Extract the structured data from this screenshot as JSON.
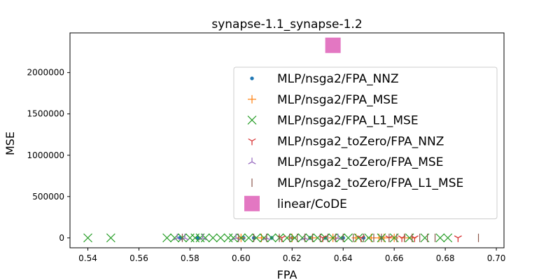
{
  "chart_data": {
    "type": "scatter",
    "title": "synapse-1.1_synapse-1.2",
    "xlabel": "FPA",
    "ylabel": "MSE",
    "xlim": [
      0.533,
      0.703
    ],
    "ylim": [
      -120000,
      2480000
    ],
    "xticks": [
      0.54,
      0.56,
      0.58,
      0.6,
      0.62,
      0.64,
      0.66,
      0.68,
      0.7
    ],
    "xtick_labels": [
      "0.54",
      "0.56",
      "0.58",
      "0.60",
      "0.62",
      "0.64",
      "0.66",
      "0.68",
      "0.70"
    ],
    "yticks": [
      0,
      500000,
      1000000,
      1500000,
      2000000
    ],
    "ytick_labels": [
      "0",
      "500000",
      "1000000",
      "1500000",
      "2000000"
    ],
    "grid": false,
    "legend_position": "upper-right",
    "series": [
      {
        "name": "MLP/nsga2/FPA_NNZ",
        "marker": "dot",
        "color": "#1f77b4",
        "points": [
          [
            0.576,
            0
          ],
          [
            0.583,
            0
          ],
          [
            0.601,
            0
          ],
          [
            0.605,
            0
          ],
          [
            0.612,
            0
          ],
          [
            0.62,
            0
          ],
          [
            0.627,
            0
          ],
          [
            0.633,
            0
          ],
          [
            0.64,
            0
          ],
          [
            0.648,
            0
          ],
          [
            0.655,
            0
          ]
        ]
      },
      {
        "name": "MLP/nsga2/FPA_MSE",
        "marker": "plus",
        "color": "#ff7f0e",
        "points": [
          [
            0.6,
            0
          ],
          [
            0.608,
            0
          ],
          [
            0.62,
            0
          ],
          [
            0.628,
            0
          ],
          [
            0.636,
            0
          ],
          [
            0.645,
            0
          ],
          [
            0.651,
            0
          ],
          [
            0.654,
            0
          ],
          [
            0.656,
            0
          ],
          [
            0.66,
            0
          ],
          [
            0.664,
            0
          ],
          [
            0.667,
            0
          ]
        ]
      },
      {
        "name": "MLP/nsga2/FPA_L1_MSE",
        "marker": "x",
        "color": "#2ca02c",
        "points": [
          [
            0.54,
            0
          ],
          [
            0.549,
            0
          ],
          [
            0.571,
            0
          ],
          [
            0.574,
            0
          ],
          [
            0.577,
            0
          ],
          [
            0.58,
            0
          ],
          [
            0.582,
            0
          ],
          [
            0.584,
            0
          ],
          [
            0.586,
            0
          ],
          [
            0.589,
            0
          ],
          [
            0.592,
            0
          ],
          [
            0.595,
            0
          ],
          [
            0.597,
            0
          ],
          [
            0.6,
            0
          ],
          [
            0.603,
            0
          ],
          [
            0.606,
            0
          ],
          [
            0.609,
            0
          ],
          [
            0.612,
            0
          ],
          [
            0.615,
            0
          ],
          [
            0.618,
            0
          ],
          [
            0.621,
            0
          ],
          [
            0.624,
            0
          ],
          [
            0.627,
            0
          ],
          [
            0.63,
            0
          ],
          [
            0.633,
            0
          ],
          [
            0.636,
            0
          ],
          [
            0.639,
            0
          ],
          [
            0.642,
            0
          ],
          [
            0.646,
            0
          ],
          [
            0.65,
            0
          ],
          [
            0.655,
            0
          ],
          [
            0.66,
            0
          ],
          [
            0.666,
            0
          ],
          [
            0.672,
            0
          ],
          [
            0.678,
            0
          ],
          [
            0.681,
            0
          ]
        ]
      },
      {
        "name": "MLP/nsga2_toZero/FPA_NNZ",
        "marker": "tri_down",
        "color": "#d62728",
        "points": [
          [
            0.616,
            0
          ],
          [
            0.632,
            0
          ],
          [
            0.647,
            0
          ],
          [
            0.658,
            0
          ],
          [
            0.663,
            0
          ],
          [
            0.668,
            0
          ],
          [
            0.685,
            0
          ]
        ]
      },
      {
        "name": "MLP/nsga2_toZero/FPA_MSE",
        "marker": "tri_up",
        "color": "#9467bd",
        "points": [
          [
            0.575,
            0
          ],
          [
            0.578,
            0
          ],
          [
            0.585,
            0
          ],
          [
            0.598,
            0
          ],
          [
            0.61,
            0
          ],
          [
            0.625,
            0
          ],
          [
            0.638,
            0
          ]
        ]
      },
      {
        "name": "MLP/nsga2_toZero/FPA_L1_MSE",
        "marker": "vline",
        "color": "#8c564b",
        "points": [
          [
            0.577,
            0
          ],
          [
            0.599,
            0
          ],
          [
            0.605,
            0
          ],
          [
            0.61,
            0
          ],
          [
            0.615,
            0
          ],
          [
            0.619,
            0
          ],
          [
            0.622,
            0
          ],
          [
            0.625,
            0
          ],
          [
            0.628,
            0
          ],
          [
            0.631,
            0
          ],
          [
            0.634,
            0
          ],
          [
            0.637,
            0
          ],
          [
            0.64,
            0
          ],
          [
            0.644,
            0
          ],
          [
            0.648,
            0
          ],
          [
            0.652,
            0
          ],
          [
            0.655,
            0
          ],
          [
            0.658,
            0
          ],
          [
            0.661,
            0
          ],
          [
            0.664,
            0
          ],
          [
            0.667,
            0
          ],
          [
            0.67,
            0
          ],
          [
            0.673,
            0
          ],
          [
            0.676,
            0
          ],
          [
            0.693,
            0
          ]
        ]
      },
      {
        "name": "linear/CoDE",
        "marker": "square",
        "color": "#e377c2",
        "points": [
          [
            0.636,
            2330000
          ]
        ]
      }
    ]
  }
}
